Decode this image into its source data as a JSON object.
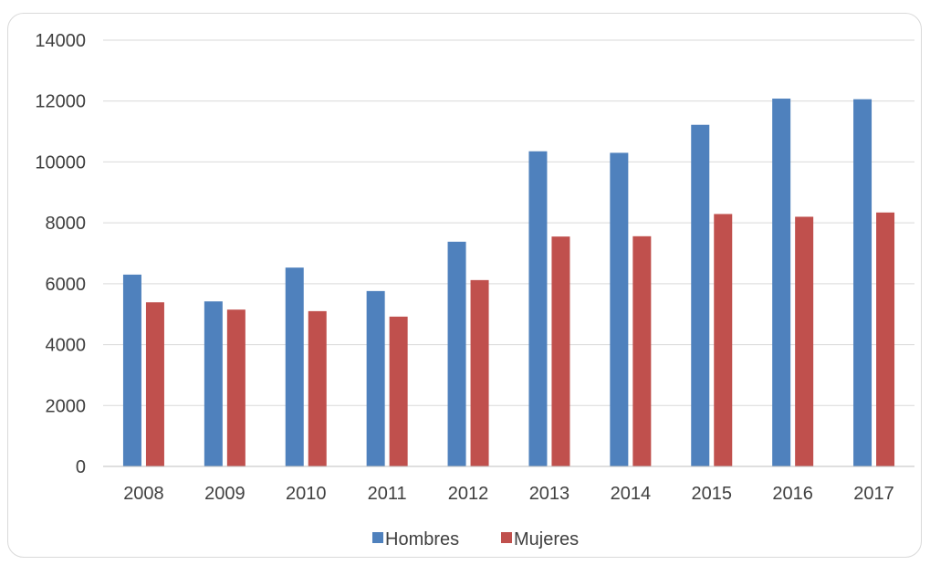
{
  "chart_data": {
    "type": "bar",
    "title": "",
    "xlabel": "",
    "ylabel": "",
    "categories": [
      "2008",
      "2009",
      "2010",
      "2011",
      "2012",
      "2013",
      "2014",
      "2015",
      "2016",
      "2017"
    ],
    "series": [
      {
        "name": "Hombres",
        "color": "#4f81bd",
        "values": [
          6300,
          5420,
          6530,
          5760,
          7380,
          10350,
          10300,
          11220,
          12080,
          12060
        ]
      },
      {
        "name": "Mujeres",
        "color": "#c0504d",
        "values": [
          5390,
          5150,
          5100,
          4920,
          6120,
          7550,
          7560,
          8290,
          8200,
          8340
        ]
      }
    ],
    "ylim": [
      0,
      14000
    ],
    "yticks": [
      "0",
      "2000",
      "4000",
      "6000",
      "8000",
      "10000",
      "12000",
      "14000"
    ],
    "grid": true,
    "legend_position": "bottom"
  }
}
